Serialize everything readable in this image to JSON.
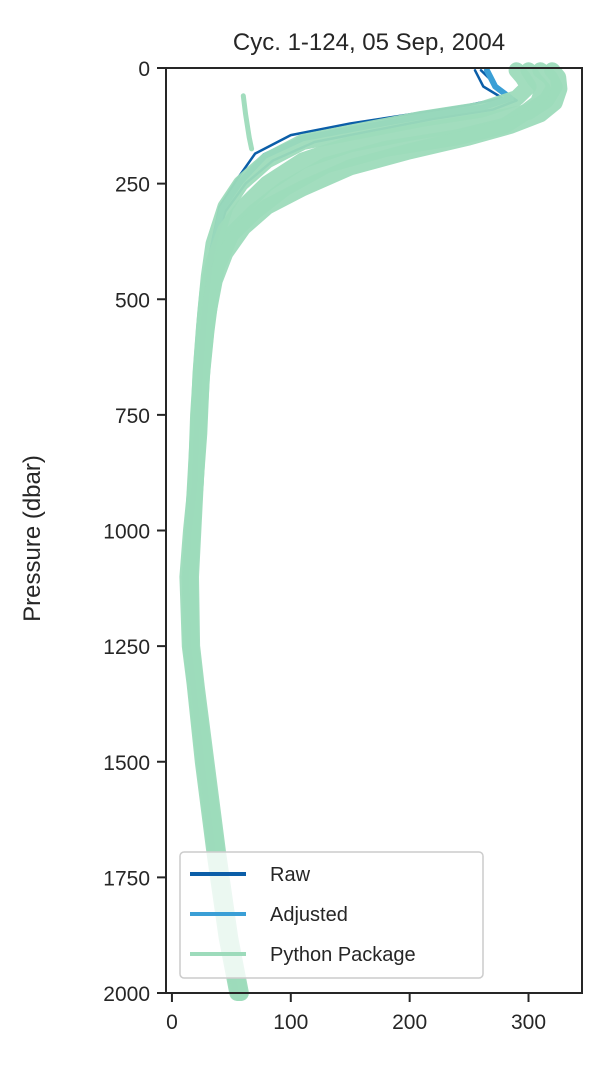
{
  "chart_data": {
    "type": "line",
    "title": "Cyc. 1-124, 05 Sep, 2004",
    "xlabel": "",
    "ylabel": "Pressure (dbar)",
    "xlim": [
      -5,
      345
    ],
    "ylim": [
      2000,
      0
    ],
    "y_inverted": true,
    "xticks": [
      "0",
      "100",
      "200",
      "300"
    ],
    "xtick_values": [
      0,
      100,
      200,
      300
    ],
    "yticks": [
      "0",
      "250",
      "500",
      "750",
      "1000",
      "1250",
      "1500",
      "1750",
      "2000"
    ],
    "ytick_values": [
      0,
      250,
      500,
      750,
      1000,
      1250,
      1500,
      1750,
      2000
    ],
    "grid": false,
    "legend_position": "lower-left",
    "series": [
      {
        "name": "Raw",
        "color": "#0b5ea8",
        "profiles": [
          {
            "x": [
              255,
              258,
              262,
              278,
              250,
              200,
              150,
              100,
              70,
              55,
              40,
              32,
              30,
              28,
              25,
              22,
              20,
              15,
              12,
              14,
              18,
              25,
              35,
              45,
              55
            ],
            "y": [
              5,
              20,
              40,
              65,
              80,
              100,
              120,
              145,
              185,
              240,
              300,
              400,
              460,
              540,
              640,
              760,
              900,
              1000,
              1100,
              1250,
              1330,
              1500,
              1700,
              1880,
              2000
            ]
          },
          {
            "x": [
              260,
              268,
              275,
              290,
              270,
              220,
              170,
              120,
              85,
              62,
              45,
              33,
              30,
              27,
              24,
              21,
              19,
              14,
              11,
              13,
              17,
              24,
              34,
              44,
              53
            ],
            "y": [
              5,
              25,
              45,
              70,
              90,
              110,
              135,
              160,
              200,
              250,
              310,
              410,
              470,
              550,
              650,
              770,
              910,
              1010,
              1110,
              1260,
              1340,
              1510,
              1710,
              1890,
              2000
            ]
          }
        ]
      },
      {
        "name": "Adjusted",
        "color": "#3a9fd6",
        "profiles": [
          {
            "x": [
              265,
              268,
              272,
              285,
              262,
              210,
              160,
              110,
              78,
              58,
              42,
              33,
              30,
              27,
              24,
              21,
              19,
              14,
              12,
              14,
              18,
              25,
              35,
              45,
              54
            ],
            "y": [
              5,
              20,
              40,
              65,
              85,
              105,
              128,
              152,
              190,
              245,
              305,
              405,
              465,
              545,
              645,
              765,
              905,
              1005,
              1105,
              1255,
              1335,
              1505,
              1705,
              1885,
              2000
            ]
          }
        ]
      },
      {
        "name": "Python Package",
        "color": "#9ddbbb",
        "profiles": [
          {
            "x": [
              310,
              318,
              322,
              315,
              300,
              260,
              200,
              150,
              110,
              80,
              60,
              45,
              35,
              30,
              27,
              24,
              22,
              19,
              15,
              16,
              20,
              28,
              38,
              48,
              57
            ],
            "y": [
              5,
              20,
              40,
              70,
              95,
              115,
              140,
              165,
              200,
              250,
              300,
              350,
              420,
              480,
              560,
              660,
              780,
              920,
              1100,
              1250,
              1340,
              1500,
              1700,
              1880,
              2000
            ]
          },
          {
            "x": [
              300,
              305,
              312,
              308,
              295,
              280,
              240,
              180,
              130,
              95,
              70,
              50,
              38,
              33,
              29,
              25,
              23,
              19,
              15,
              16,
              20,
              27,
              37,
              47,
              56
            ],
            "y": [
              5,
              25,
              45,
              75,
              100,
              125,
              150,
              175,
              210,
              260,
              310,
              360,
              430,
              490,
              570,
              670,
              790,
              930,
              1100,
              1250,
              1340,
              1500,
              1700,
              1880,
              2000
            ]
          },
          {
            "x": [
              290,
              295,
              300,
              290,
              260,
              210,
              160,
              110,
              80,
              58,
              45,
              35,
              31,
              28,
              25,
              22,
              20,
              16,
              13,
              15,
              19,
              26,
              36,
              46,
              55
            ],
            "y": [
              5,
              20,
              40,
              65,
              90,
              110,
              135,
              160,
              200,
              250,
              300,
              380,
              450,
              530,
              630,
              750,
              900,
              1000,
              1100,
              1250,
              1330,
              1500,
              1700,
              1880,
              2000
            ]
          },
          {
            "x": [
              320,
              325,
              326,
              322,
              310,
              285,
              250,
              200,
              150,
              110,
              80,
              60,
              45,
              36,
              30,
              26,
              23,
              20,
              16,
              17,
              21,
              29,
              39,
              49,
              58
            ],
            "y": [
              5,
              20,
              45,
              75,
              100,
              125,
              150,
              180,
              215,
              260,
              300,
              345,
              400,
              460,
              540,
              640,
              760,
              900,
              1100,
              1250,
              1340,
              1500,
              1700,
              1880,
              2000
            ]
          },
          {
            "x": [
              60,
              62,
              65,
              67
            ],
            "y": [
              60,
              100,
              150,
              175
            ]
          }
        ]
      }
    ]
  }
}
